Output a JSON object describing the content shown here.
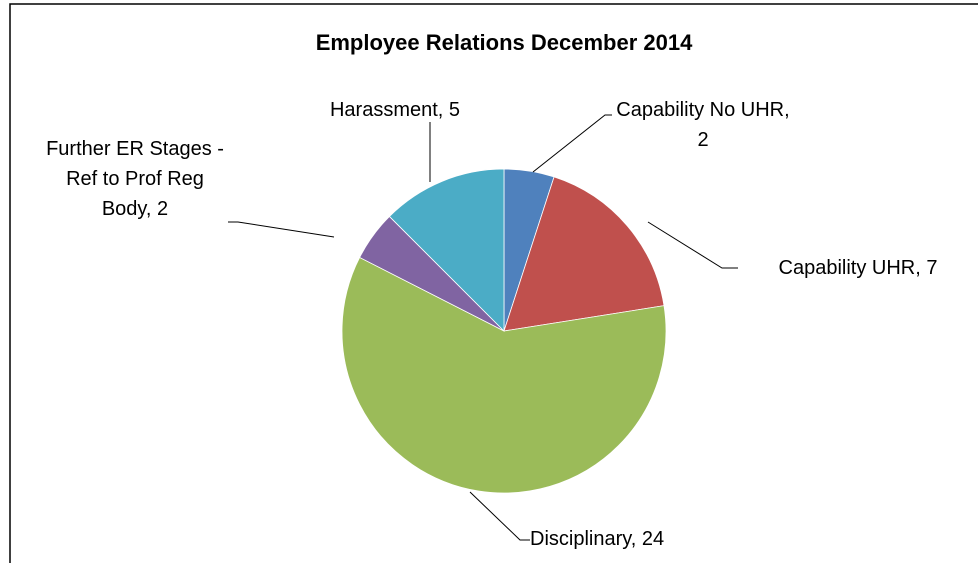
{
  "chart_data": {
    "type": "pie",
    "title": "Employee Relations December 2014",
    "values": [
      2,
      7,
      24,
      2,
      5
    ],
    "value_labels": [
      "Capability No UHR, 2",
      "Capability UHR, 7",
      "Disciplinary, 24",
      "Further ER Stages - Ref to Prof Reg Body, 2",
      "Harassment, 5"
    ],
    "colors": [
      "#4f81bd",
      "#c0504d",
      "#9bbb59",
      "#8064a2",
      "#4bacc6"
    ]
  }
}
